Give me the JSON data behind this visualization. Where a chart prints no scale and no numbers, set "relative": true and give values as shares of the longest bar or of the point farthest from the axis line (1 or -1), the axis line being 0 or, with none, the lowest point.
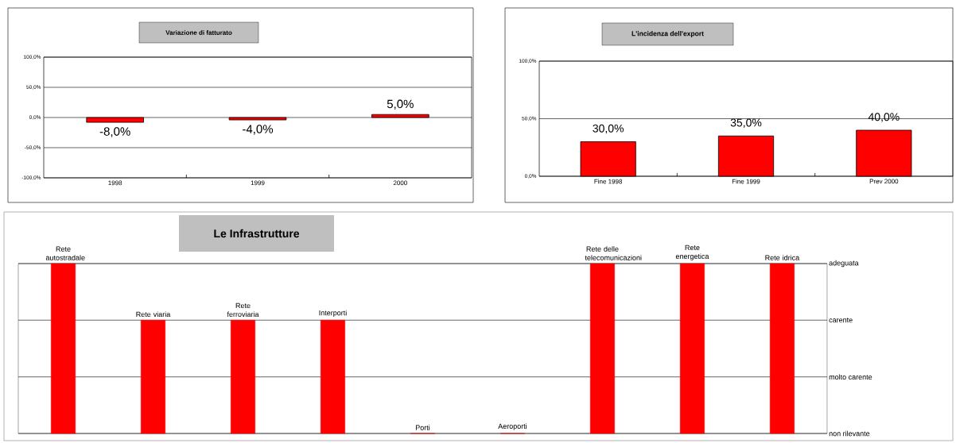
{
  "chart_data": [
    {
      "type": "bar",
      "title": "Variazione di fatturato",
      "categories": [
        "1998",
        "1999",
        "2000"
      ],
      "values": [
        -8,
        -4,
        5
      ],
      "value_labels": [
        "-8,0%",
        "-4,0%",
        "5,0%"
      ],
      "color": "#ff0000",
      "ylim": [
        -100,
        100
      ],
      "yticks": [
        {
          "value": -100,
          "label": "-100,0%"
        },
        {
          "value": -50,
          "label": "-50,0%"
        },
        {
          "value": 0,
          "label": "0,0%"
        },
        {
          "value": 50,
          "label": "50,0%"
        },
        {
          "value": 100,
          "label": "100,0%"
        }
      ],
      "grid": "y"
    },
    {
      "type": "bar",
      "title": "L'incidenza dell'export",
      "categories": [
        "Fine 1998",
        "Fine 1999",
        "Prev 2000"
      ],
      "values": [
        30,
        35,
        40
      ],
      "value_labels": [
        "30,0%",
        "35,0%",
        "40,0%"
      ],
      "color": "#ff0000",
      "ylim": [
        0,
        100
      ],
      "yticks": [
        {
          "value": 0,
          "label": "0,0%"
        },
        {
          "value": 50,
          "label": "50,0%"
        },
        {
          "value": 100,
          "label": "100,0%"
        }
      ],
      "grid": "y"
    },
    {
      "type": "bar",
      "title": "Le Infrastrutture",
      "relative": true,
      "categories": [
        "Rete autostradale",
        "Rete viaria",
        "Rete ferroviaria",
        "Interporti",
        "Porti",
        "Aeroporti",
        "Rete delle telecomunicazioni",
        "Rete energetica",
        "Rete idrica"
      ],
      "values": [
        1,
        0.667,
        0.667,
        0.667,
        0,
        0,
        1,
        1,
        1
      ],
      "color": "#ff0000",
      "ref_lines": [
        {
          "axis": "y",
          "value": 0,
          "label": "non rilevante"
        },
        {
          "axis": "y",
          "value": 0.333,
          "label": "molto carente"
        },
        {
          "axis": "y",
          "value": 0.667,
          "label": "carente"
        },
        {
          "axis": "y",
          "value": 1,
          "label": "adeguata"
        }
      ]
    }
  ]
}
